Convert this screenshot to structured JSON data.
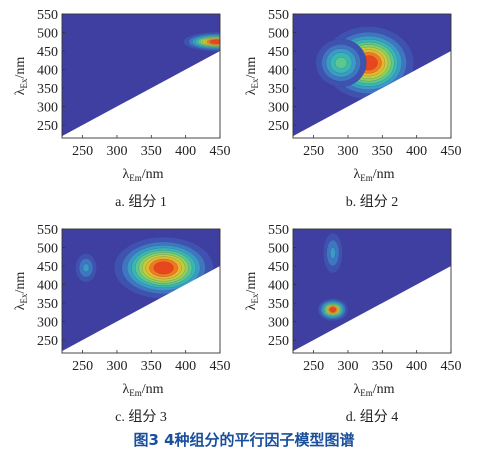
{
  "figure_title": "图3   4种组分的平行因子模型图谱",
  "axis_text": {
    "y_lambda": "λ",
    "y_sub": "Ex",
    "y_unit": "/nm",
    "x_lambda": "λ",
    "x_sub": "Em",
    "x_unit": "/nm"
  },
  "chart_data": [
    {
      "type": "heatmap",
      "caption": "a. 组分 1",
      "xlim": [
        220,
        450
      ],
      "ylim": [
        215,
        550
      ],
      "xticks": [
        250,
        300,
        350,
        400,
        450
      ],
      "yticks": [
        250,
        300,
        350,
        400,
        450,
        500,
        550
      ],
      "peaks": [
        {
          "em": 445,
          "ex": 475,
          "intensity": 1.0,
          "sx": 22,
          "sy": 12
        }
      ]
    },
    {
      "type": "heatmap",
      "caption": "b. 组分 2",
      "xlim": [
        220,
        450
      ],
      "ylim": [
        215,
        550
      ],
      "xticks": [
        250,
        300,
        350,
        400,
        450
      ],
      "yticks": [
        250,
        300,
        350,
        400,
        450,
        500,
        550
      ],
      "peaks": [
        {
          "em": 330,
          "ex": 418,
          "intensity": 1.0,
          "sx": 30,
          "sy": 45
        },
        {
          "em": 290,
          "ex": 418,
          "intensity": 0.5,
          "sx": 20,
          "sy": 35
        }
      ]
    },
    {
      "type": "heatmap",
      "caption": "c. 组分 3",
      "xlim": [
        220,
        450
      ],
      "ylim": [
        215,
        550
      ],
      "xticks": [
        250,
        300,
        350,
        400,
        450
      ],
      "yticks": [
        250,
        300,
        350,
        400,
        450,
        500,
        550
      ],
      "peaks": [
        {
          "em": 368,
          "ex": 445,
          "intensity": 1.0,
          "sx": 33,
          "sy": 38
        },
        {
          "em": 255,
          "ex": 445,
          "intensity": 0.3,
          "sx": 10,
          "sy": 25
        }
      ]
    },
    {
      "type": "heatmap",
      "caption": "d. 组分 4",
      "xlim": [
        220,
        450
      ],
      "ylim": [
        215,
        550
      ],
      "xticks": [
        250,
        300,
        350,
        400,
        450
      ],
      "yticks": [
        250,
        300,
        350,
        400,
        450,
        500,
        550
      ],
      "peaks": [
        {
          "em": 278,
          "ex": 332,
          "intensity": 1.0,
          "sx": 10,
          "sy": 14
        },
        {
          "em": 278,
          "ex": 485,
          "intensity": 0.3,
          "sx": 9,
          "sy": 35
        }
      ]
    }
  ],
  "colors": {
    "background_level": "#3f3fa2",
    "levels": [
      "#3f3fa2",
      "#4052b0",
      "#3f76c0",
      "#3b9bc6",
      "#38b8b0",
      "#5cc890",
      "#8fd05c",
      "#bfcf3e",
      "#e8b731",
      "#f07a1c",
      "#e8461c"
    ],
    "masked_region": "#ffffff"
  }
}
